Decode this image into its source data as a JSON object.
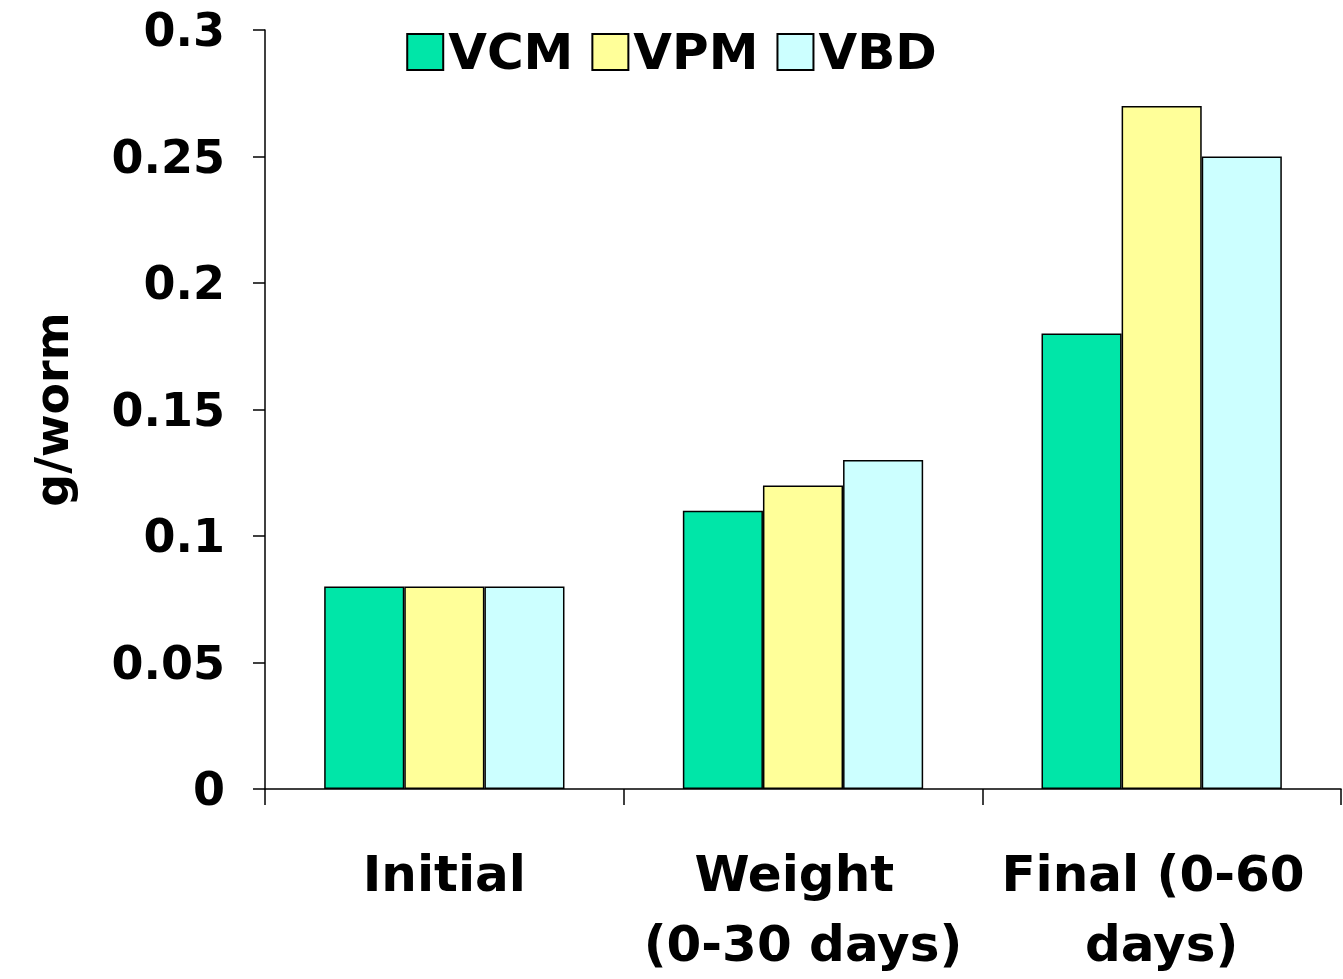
{
  "chart_data": {
    "type": "bar",
    "ylabel": "g/worm",
    "categories": [
      "Initial",
      "Weight (0-30 days)",
      "Final (0-60 days)"
    ],
    "series": [
      {
        "name": "VCM",
        "color": "#00e6a8",
        "values": [
          0.08,
          0.11,
          0.18
        ]
      },
      {
        "name": "VPM",
        "color": "#ffff99",
        "values": [
          0.08,
          0.12,
          0.27
        ]
      },
      {
        "name": "VBD",
        "color": "#ccffff",
        "values": [
          0.08,
          0.13,
          0.25
        ]
      }
    ],
    "ylim": [
      0,
      0.3
    ],
    "yticks": [
      0,
      0.05,
      0.1,
      0.15,
      0.2,
      0.25,
      0.3
    ],
    "grid": false,
    "legend": "top"
  }
}
